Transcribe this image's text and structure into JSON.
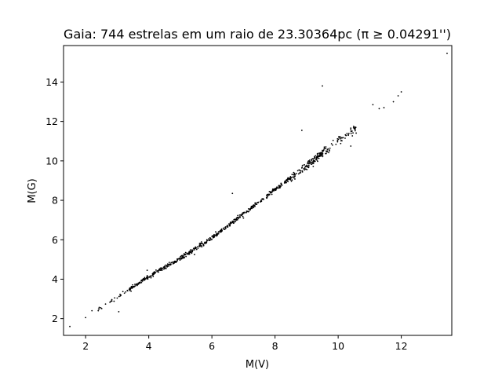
{
  "chart_data": {
    "type": "scatter",
    "title": "Gaia: 744 estrelas em um raio de 23.30364pc (π ≥ 0.04291'')",
    "xlabel": "M(V)",
    "ylabel": "M(G)",
    "xlim": [
      1.3,
      13.6
    ],
    "ylim": [
      1.15,
      15.85
    ],
    "xticks": [
      2,
      4,
      6,
      8,
      10,
      12
    ],
    "yticks": [
      2,
      4,
      6,
      8,
      10,
      12,
      14
    ],
    "grid": false,
    "marker_color": "#000000",
    "n_points": 744,
    "outliers": [
      {
        "x": 1.5,
        "y": 1.6
      },
      {
        "x": 2.0,
        "y": 2.05
      },
      {
        "x": 2.2,
        "y": 2.4
      },
      {
        "x": 2.4,
        "y": 2.4
      },
      {
        "x": 3.05,
        "y": 2.35
      },
      {
        "x": 3.95,
        "y": 4.45
      },
      {
        "x": 5.45,
        "y": 5.25
      },
      {
        "x": 6.65,
        "y": 8.35
      },
      {
        "x": 7.0,
        "y": 7.1
      },
      {
        "x": 8.85,
        "y": 11.55
      },
      {
        "x": 9.5,
        "y": 13.8
      },
      {
        "x": 10.4,
        "y": 10.75
      },
      {
        "x": 11.1,
        "y": 12.85
      },
      {
        "x": 11.3,
        "y": 12.65
      },
      {
        "x": 11.45,
        "y": 12.7
      },
      {
        "x": 11.75,
        "y": 13.0
      },
      {
        "x": 11.9,
        "y": 13.3
      },
      {
        "x": 12.0,
        "y": 13.5
      },
      {
        "x": 13.45,
        "y": 15.45
      }
    ],
    "main_sequence_trend": [
      {
        "x": 2.5,
        "y": 2.6
      },
      {
        "x": 3.0,
        "y": 3.05
      },
      {
        "x": 4.0,
        "y": 4.15
      },
      {
        "x": 5.0,
        "y": 5.05
      },
      {
        "x": 6.0,
        "y": 6.1
      },
      {
        "x": 7.0,
        "y": 7.3
      },
      {
        "x": 8.0,
        "y": 8.55
      },
      {
        "x": 9.0,
        "y": 9.75
      },
      {
        "x": 10.0,
        "y": 11.0
      },
      {
        "x": 11.0,
        "y": 12.2
      }
    ]
  }
}
